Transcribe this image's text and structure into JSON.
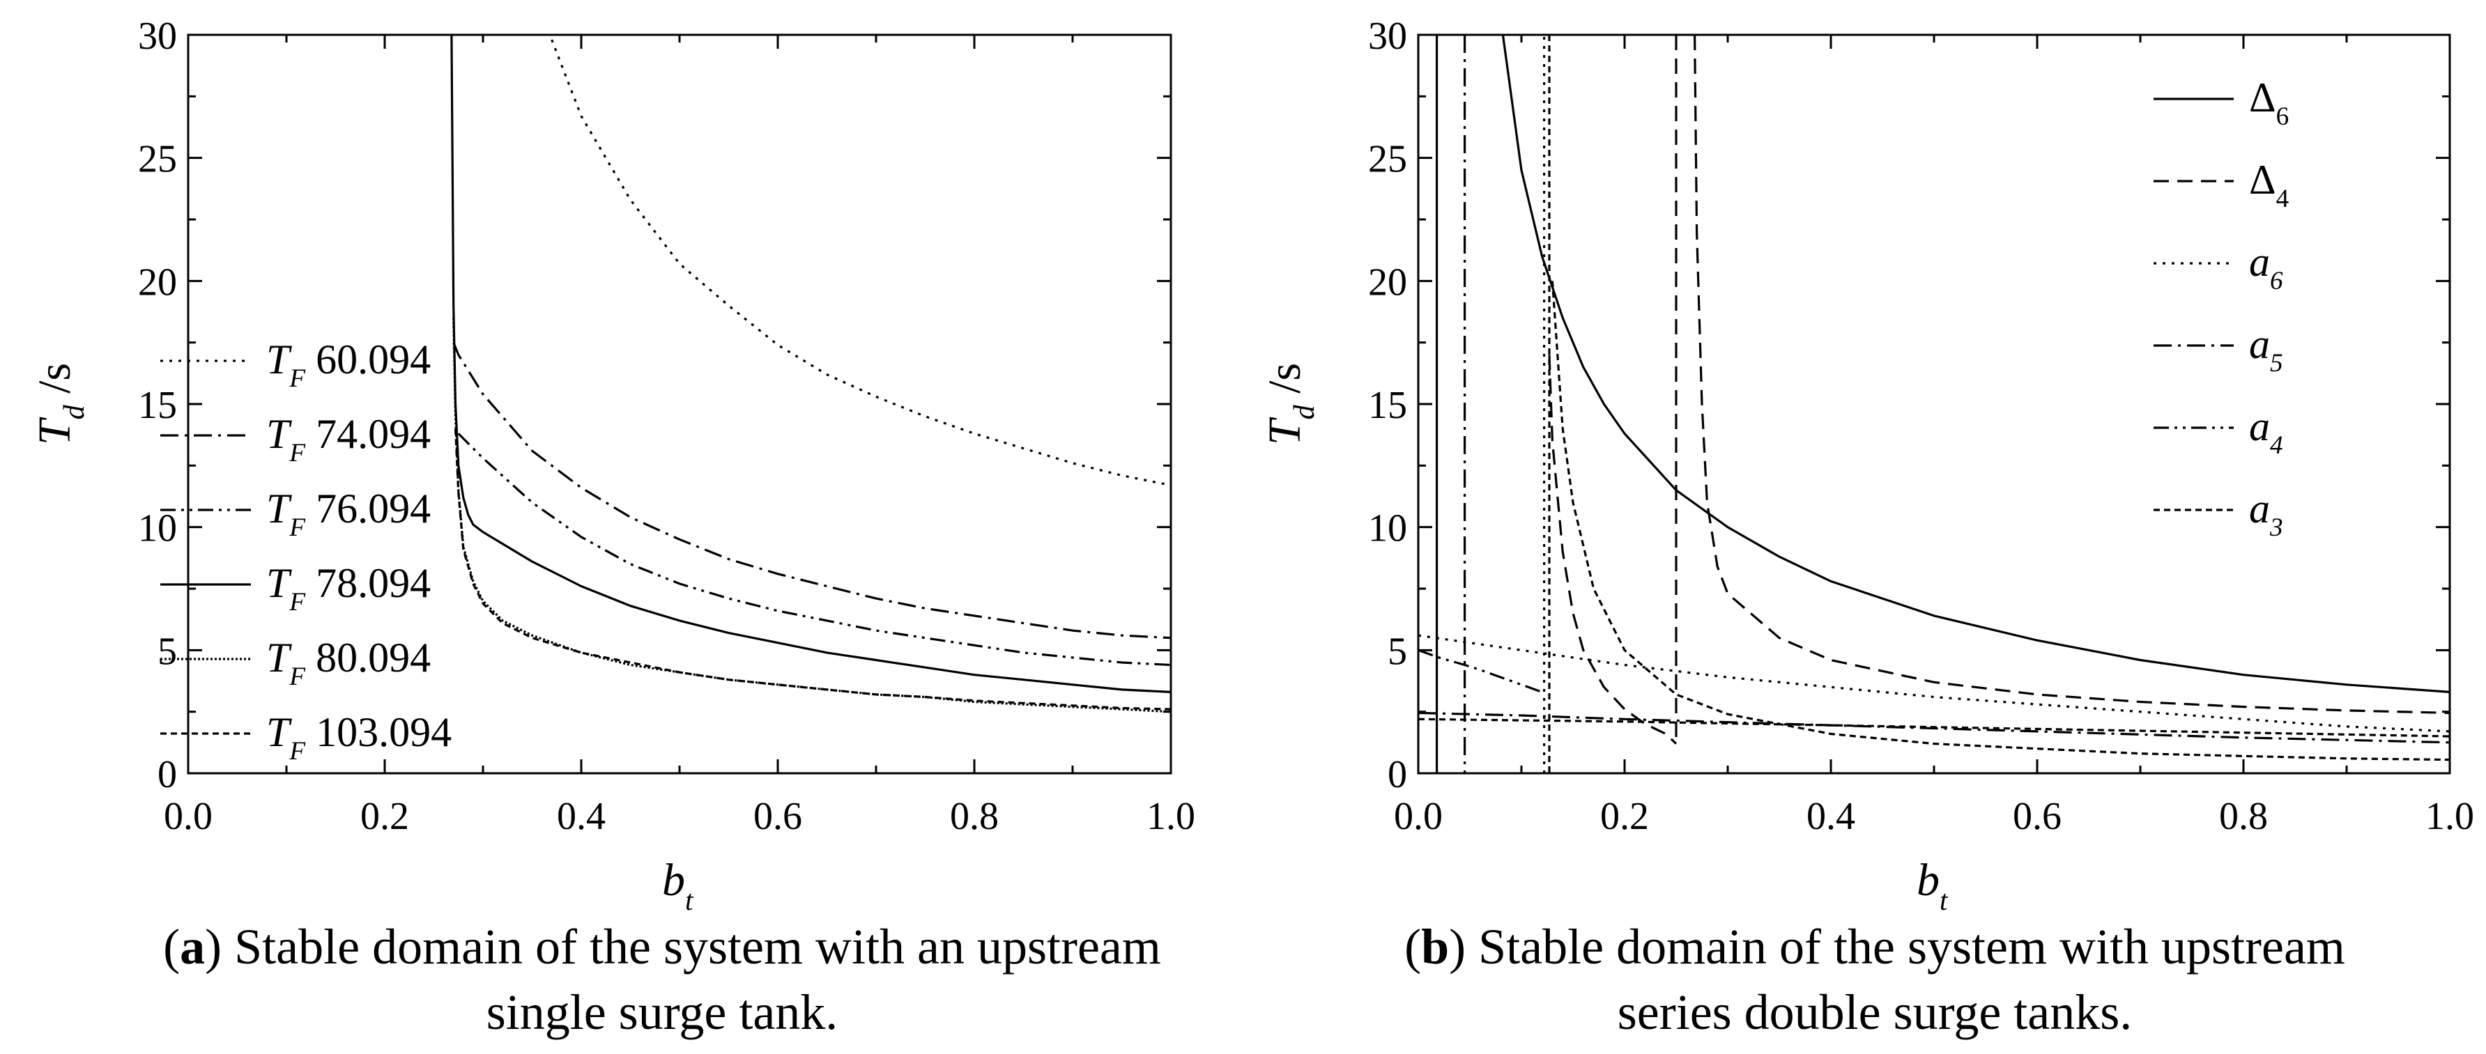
{
  "captions": {
    "a": {
      "letter": "a",
      "line1": "Stable domain of the system with an upstream",
      "line2": "single surge tank."
    },
    "b": {
      "letter": "b",
      "line1": "Stable domain of the system with upstream",
      "line2": "series double surge tanks."
    }
  },
  "chart_data": [
    {
      "id": "a",
      "type": "line",
      "ylabel_main": "T",
      "ylabel_sub": "d",
      "ylabel_unit": " /s",
      "xlabel_main": "b",
      "xlabel_sub": "t",
      "xlim": [
        0.0,
        1.0
      ],
      "ylim": [
        0,
        30
      ],
      "xticks": [
        "0.0",
        "0.2",
        "0.4",
        "0.6",
        "0.8",
        "1.0"
      ],
      "yticks": [
        "0",
        "5",
        "10",
        "15",
        "20",
        "25",
        "30"
      ],
      "grid": false,
      "legend_position": "left-middle",
      "series": [
        {
          "name_main": "T",
          "name_sub": "F",
          "name_value": "60.094",
          "style": "dotted",
          "x": [
            0.37,
            0.4,
            0.45,
            0.5,
            0.55,
            0.6,
            0.65,
            0.7,
            0.75,
            0.8,
            0.85,
            0.9,
            0.95,
            1.0
          ],
          "y": [
            29.8,
            26.7,
            23.3,
            20.7,
            19.0,
            17.4,
            16.2,
            15.3,
            14.5,
            13.8,
            13.2,
            12.6,
            12.1,
            11.7
          ]
        },
        {
          "name_main": "T",
          "name_sub": "F",
          "name_value": "74.094",
          "style": "dashdot",
          "x": [
            0.27,
            0.275,
            0.3,
            0.35,
            0.4,
            0.45,
            0.5,
            0.55,
            0.6,
            0.65,
            0.7,
            0.75,
            0.8,
            0.85,
            0.9,
            0.95,
            1.0
          ],
          "y": [
            17.5,
            17.0,
            15.4,
            13.1,
            11.6,
            10.4,
            9.5,
            8.7,
            8.1,
            7.6,
            7.1,
            6.7,
            6.4,
            6.1,
            5.8,
            5.6,
            5.5
          ]
        },
        {
          "name_main": "T",
          "name_sub": "F",
          "name_value": "76.094",
          "style": "dashdotdot",
          "x": [
            0.275,
            0.28,
            0.3,
            0.35,
            0.4,
            0.45,
            0.5,
            0.55,
            0.6,
            0.65,
            0.7,
            0.75,
            0.8,
            0.85,
            0.9,
            0.95,
            1.0
          ],
          "y": [
            13.8,
            13.6,
            12.8,
            11.0,
            9.6,
            8.5,
            7.7,
            7.1,
            6.6,
            6.2,
            5.8,
            5.5,
            5.2,
            4.9,
            4.7,
            4.5,
            4.4
          ]
        },
        {
          "name_main": "T",
          "name_sub": "F",
          "name_value": "78.094",
          "style": "solid",
          "x": [
            0.268,
            0.27,
            0.272,
            0.275,
            0.28,
            0.285,
            0.29,
            0.3,
            0.35,
            0.4,
            0.45,
            0.5,
            0.55,
            0.6,
            0.65,
            0.7,
            0.75,
            0.8,
            0.85,
            0.9,
            0.95,
            1.0
          ],
          "y": [
            30.0,
            19.0,
            15.0,
            12.5,
            11.2,
            10.5,
            10.1,
            9.8,
            8.6,
            7.6,
            6.8,
            6.2,
            5.7,
            5.3,
            4.9,
            4.6,
            4.3,
            4.0,
            3.8,
            3.6,
            3.4,
            3.3
          ]
        },
        {
          "name_main": "T",
          "name_sub": "F",
          "name_value": "80.094",
          "style": "densedot",
          "x": [
            0.27,
            0.272,
            0.275,
            0.28,
            0.29,
            0.3,
            0.32,
            0.35,
            0.4,
            0.45,
            0.5,
            0.55,
            0.6,
            0.65,
            0.7,
            0.75,
            0.8,
            0.85,
            0.9,
            0.95,
            1.0
          ],
          "y": [
            18.5,
            14.5,
            11.5,
            9.2,
            7.8,
            7.0,
            6.2,
            5.6,
            4.9,
            4.4,
            4.1,
            3.8,
            3.6,
            3.4,
            3.2,
            3.1,
            2.9,
            2.8,
            2.7,
            2.6,
            2.5
          ]
        },
        {
          "name_main": "T",
          "name_sub": "F",
          "name_value": "103.094",
          "style": "shortdash",
          "x": [
            0.272,
            0.275,
            0.28,
            0.29,
            0.3,
            0.32,
            0.35,
            0.4,
            0.45,
            0.5,
            0.55,
            0.6,
            0.65,
            0.7,
            0.75,
            0.8,
            0.85,
            0.9,
            0.95,
            1.0
          ],
          "y": [
            14.0,
            11.4,
            9.1,
            7.7,
            6.9,
            6.1,
            5.5,
            4.9,
            4.5,
            4.1,
            3.8,
            3.6,
            3.4,
            3.2,
            3.1,
            2.95,
            2.85,
            2.75,
            2.65,
            2.6
          ]
        }
      ]
    },
    {
      "id": "b",
      "type": "line",
      "ylabel_main": "T",
      "ylabel_sub": "d",
      "ylabel_unit": " /s",
      "xlabel_main": "b",
      "xlabel_sub": "t",
      "xlim": [
        0.0,
        1.0
      ],
      "ylim": [
        0,
        30
      ],
      "xticks": [
        "0.0",
        "0.2",
        "0.4",
        "0.6",
        "0.8",
        "1.0"
      ],
      "yticks": [
        "0",
        "5",
        "10",
        "15",
        "20",
        "25",
        "30"
      ],
      "grid": false,
      "legend_position": "top-right",
      "series": [
        {
          "name_main": "Δ",
          "name_sub": "6",
          "style": "solid",
          "segments": [
            {
              "x": [
                0.018,
                0.018
              ],
              "y": [
                30,
                0
              ]
            },
            {
              "x": [
                0.082,
                0.1,
                0.12,
                0.14,
                0.16,
                0.18,
                0.2,
                0.25,
                0.3,
                0.35,
                0.4,
                0.5,
                0.6,
                0.7,
                0.8,
                0.9,
                1.0
              ],
              "y": [
                30.0,
                24.5,
                21.0,
                18.5,
                16.5,
                15.0,
                13.8,
                11.5,
                10.0,
                8.8,
                7.8,
                6.4,
                5.4,
                4.6,
                4.0,
                3.6,
                3.3
              ]
            }
          ]
        },
        {
          "name_main": "Δ",
          "name_sub": "4",
          "style": "dashed",
          "segments": [
            {
              "x": [
                0.25,
                0.25
              ],
              "y": [
                30,
                1.2
              ]
            },
            {
              "x": [
                0.268,
                0.27,
                0.275,
                0.28,
                0.29,
                0.3,
                0.35,
                0.4,
                0.5,
                0.6,
                0.7,
                0.8,
                0.9,
                1.0
              ],
              "y": [
                30.0,
                22.0,
                15.0,
                11.0,
                8.4,
                7.3,
                5.5,
                4.6,
                3.7,
                3.2,
                2.9,
                2.7,
                2.55,
                2.45
              ]
            },
            {
              "x": [
                0.127,
                0.13,
                0.14,
                0.15,
                0.16,
                0.18,
                0.2,
                0.22,
                0.24,
                0.25
              ],
              "y": [
                17.0,
                13.5,
                9.0,
                6.5,
                5.0,
                3.5,
                2.6,
                2.0,
                1.6,
                1.2
              ]
            }
          ]
        },
        {
          "name_main": "a",
          "name_sub": "6",
          "style": "dotted",
          "segments": [
            {
              "x": [
                0.0,
                0.1,
                0.2,
                0.3,
                0.4,
                0.5,
                0.6,
                0.7,
                0.8,
                0.9,
                1.0
              ],
              "y": [
                5.6,
                5.0,
                4.4,
                3.9,
                3.5,
                3.1,
                2.8,
                2.5,
                2.2,
                1.9,
                1.7
              ]
            },
            {
              "x": [
                0.122,
                0.122
              ],
              "y": [
                0,
                30
              ]
            }
          ]
        },
        {
          "name_main": "a",
          "name_sub": "5",
          "style": "dashdot",
          "segments": [
            {
              "x": [
                0.045,
                0.045
              ],
              "y": [
                30,
                0
              ]
            },
            {
              "x": [
                0.0,
                0.1,
                0.2,
                0.4,
                0.6,
                0.8,
                1.0
              ],
              "y": [
                2.45,
                2.35,
                2.2,
                1.95,
                1.7,
                1.45,
                1.25
              ]
            }
          ]
        },
        {
          "name_main": "a",
          "name_sub": "4",
          "style": "dashdotdot",
          "segments": [
            {
              "x": [
                0.0,
                0.02,
                0.045,
                0.06,
                0.08,
                0.1,
                0.12
              ],
              "y": [
                5.0,
                4.7,
                4.4,
                4.2,
                3.9,
                3.6,
                3.3
              ]
            }
          ]
        },
        {
          "name_main": "a",
          "name_sub": "3",
          "style": "shortdash",
          "segments": [
            {
              "x": [
                0.127,
                0.127
              ],
              "y": [
                30,
                0
              ]
            },
            {
              "x": [
                0.13,
                0.135,
                0.14,
                0.15,
                0.17,
                0.2,
                0.25,
                0.3,
                0.4,
                0.5,
                0.6,
                0.7,
                0.8,
                0.9,
                1.0
              ],
              "y": [
                20.0,
                17.0,
                14.0,
                11.0,
                7.5,
                5.0,
                3.2,
                2.4,
                1.6,
                1.2,
                1.0,
                0.8,
                0.7,
                0.6,
                0.55
              ]
            },
            {
              "x": [
                0.0,
                0.2,
                0.4,
                0.6,
                0.8,
                1.0
              ],
              "y": [
                2.2,
                2.1,
                1.95,
                1.8,
                1.65,
                1.5
              ]
            }
          ]
        }
      ]
    }
  ]
}
